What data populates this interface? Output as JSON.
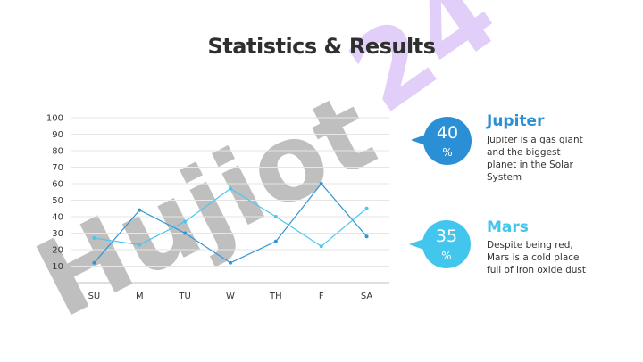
{
  "page": {
    "title": "Statistics & Results"
  },
  "colors": {
    "series_dark": "#3196d4",
    "series_light": "#4ac7ee",
    "jupiter": "#2b8fd6",
    "mars": "#43c6ee",
    "watermark": "#9c9c9c",
    "watermark_accent": "#c9a8f5"
  },
  "chart_data": {
    "type": "line",
    "categories": [
      "SU",
      "M",
      "TU",
      "W",
      "TH",
      "F",
      "SA"
    ],
    "yticks": [
      "100",
      "90",
      "80",
      "70",
      "60",
      "50",
      "40",
      "30",
      "20",
      "10"
    ],
    "ylim": [
      0,
      100
    ],
    "grid": true,
    "series": [
      {
        "values": [
          12,
          44,
          30,
          12,
          25,
          60,
          28
        ]
      },
      {
        "values": [
          27,
          23,
          37,
          57,
          40,
          22,
          45
        ]
      }
    ]
  },
  "cards": [
    {
      "value": "40",
      "unit": "%",
      "title": "Jupiter",
      "desc": [
        "Jupiter is a gas giant",
        "and the biggest",
        "planet in the Solar",
        "System"
      ],
      "icon": "speech-bubble-icon"
    },
    {
      "value": "35",
      "unit": "%",
      "title": "Mars",
      "desc": [
        "Despite being red,",
        "Mars is a cold place",
        "full of iron oxide dust"
      ],
      "icon": "speech-bubble-icon"
    }
  ],
  "watermark": {
    "text": "Hujiot",
    "accent_text": "24"
  }
}
